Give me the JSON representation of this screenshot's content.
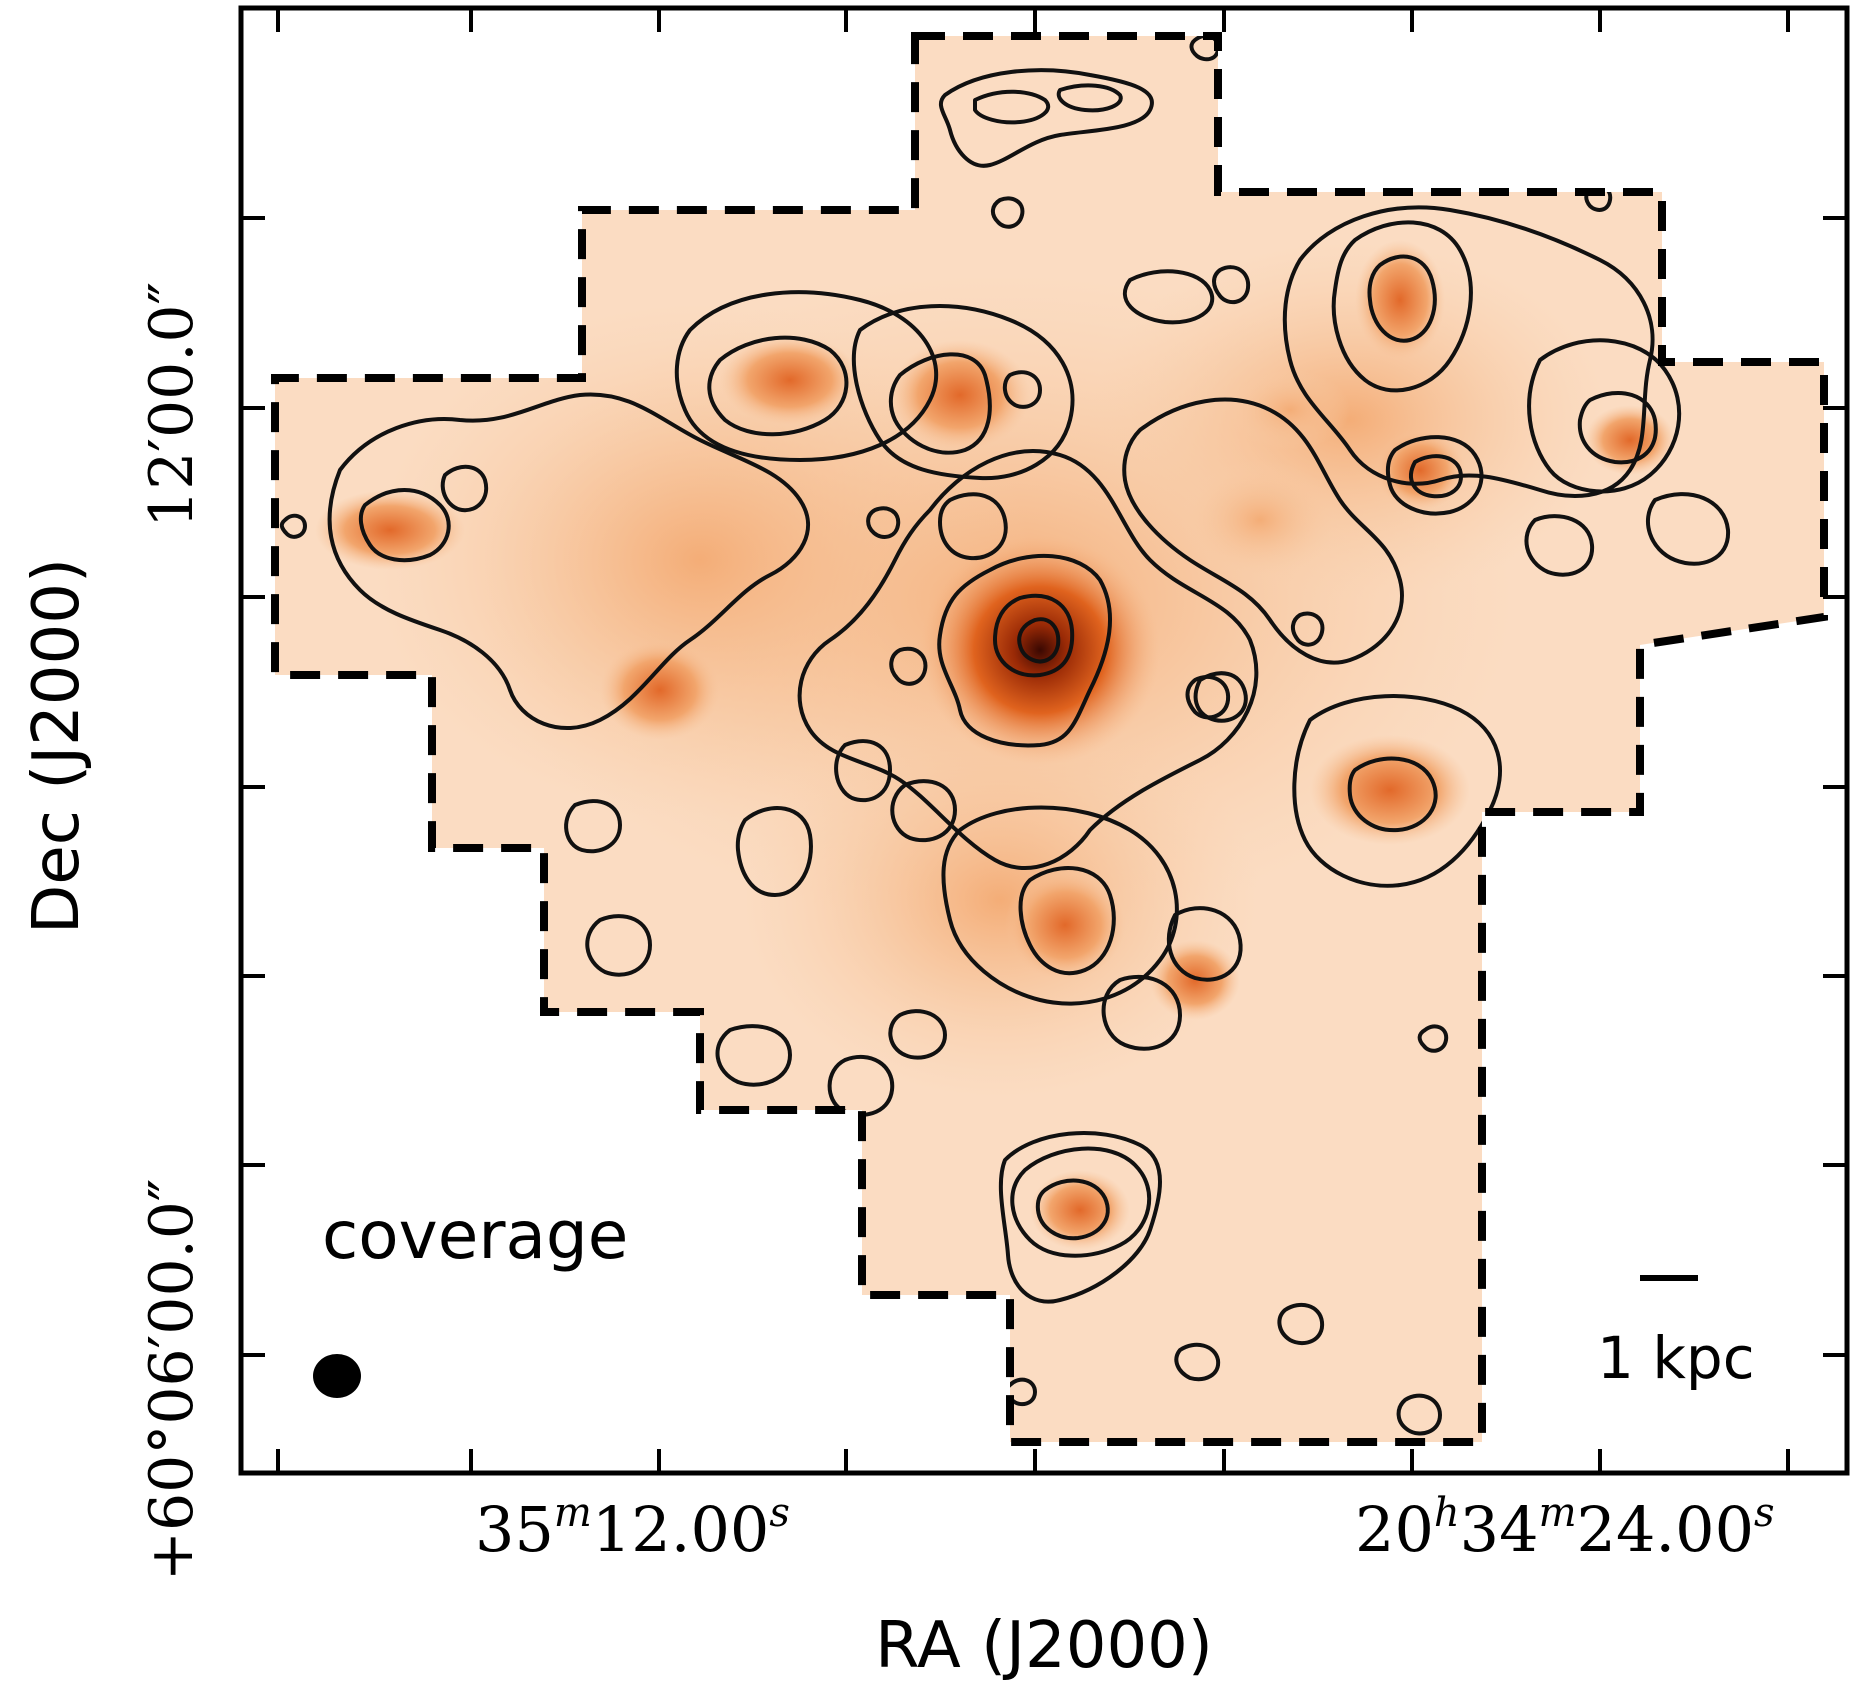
{
  "axes": {
    "xlabel": "RA (J2000)",
    "ylabel": "Dec (J2000)",
    "x_ticks": [
      {
        "main": "35",
        "sup1": "m",
        "rest": "12.00",
        "sup2": "s"
      },
      {
        "main": "20",
        "sup1": "h",
        "rest": "34",
        "sup2": "m",
        "rest2": "24.00",
        "sup3": "s"
      }
    ],
    "y_ticks": [
      {
        "text": "12′00.0″"
      },
      {
        "text": "+60°06′00.0″"
      }
    ]
  },
  "annotations": {
    "coverage_label": "coverage",
    "scalebar_label": "1 kpc"
  },
  "colors": {
    "map_low": "#fbd9bb",
    "map_mid": "#f2a56c",
    "map_high": "#e0631e",
    "map_peak": "#5a0e02",
    "contour": "#111111",
    "frame": "#000000"
  }
}
